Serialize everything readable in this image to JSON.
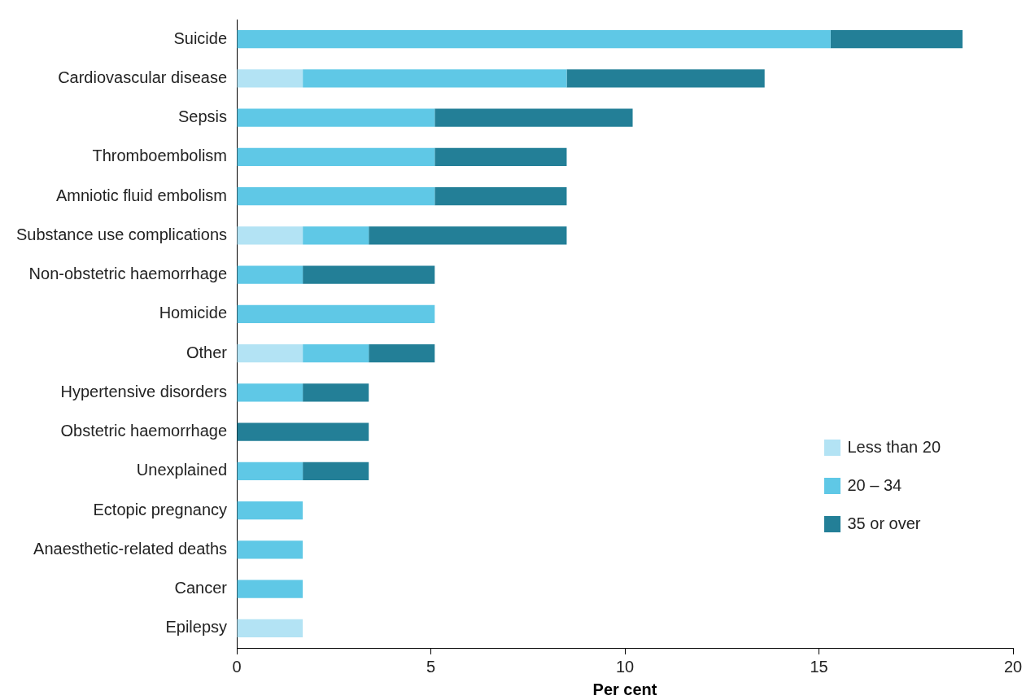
{
  "chart_data": {
    "type": "bar",
    "orientation": "horizontal",
    "stacked": true,
    "xlabel": "Per cent",
    "categories": [
      "Suicide",
      "Cardiovascular disease",
      "Sepsis",
      "Thromboembolism",
      "Amniotic fluid embolism",
      "Substance use complications",
      "Non-obstetric haemorrhage",
      "Homicide",
      "Other",
      "Hypertensive disorders",
      "Obstetric haemorrhage",
      "Unexplained",
      "Ectopic pregnancy",
      "Anaesthetic-related deaths",
      "Cancer",
      "Epilepsy"
    ],
    "series": [
      {
        "name": "Less than 20",
        "color": "#b3e3f4",
        "values": [
          0,
          1.7,
          0,
          0,
          0,
          1.7,
          0,
          0,
          1.7,
          0,
          0,
          0,
          0,
          0,
          0,
          1.7
        ]
      },
      {
        "name": "20 – 34",
        "color": "#5fc8e6",
        "values": [
          15.3,
          6.8,
          5.1,
          5.1,
          5.1,
          1.7,
          1.7,
          5.1,
          1.7,
          1.7,
          0,
          1.7,
          1.7,
          1.7,
          1.7,
          0
        ]
      },
      {
        "name": "35 or over",
        "color": "#237f97",
        "values": [
          3.4,
          5.1,
          5.1,
          3.4,
          3.4,
          5.1,
          3.4,
          0,
          1.7,
          1.7,
          3.4,
          1.7,
          0,
          0,
          0,
          0
        ]
      }
    ],
    "xlim": [
      0,
      20
    ],
    "xticks": [
      0,
      5,
      10,
      15,
      20
    ],
    "grid": false,
    "legend": "bottom right"
  }
}
